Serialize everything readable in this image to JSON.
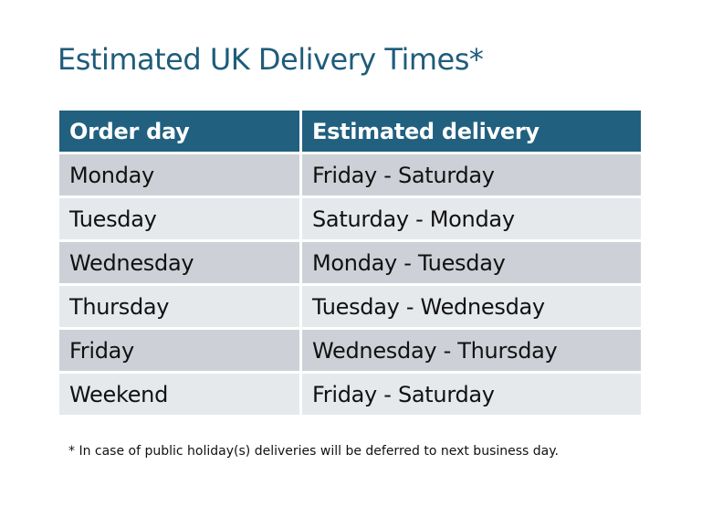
{
  "title": "Estimated UK Delivery Times*",
  "table": {
    "headers": [
      "Order day",
      "Estimated delivery"
    ],
    "rows": [
      [
        "Monday",
        "Friday - Saturday"
      ],
      [
        "Tuesday",
        "Saturday - Monday"
      ],
      [
        "Wednesday",
        "Monday - Tuesday"
      ],
      [
        "Thursday",
        "Tuesday - Wednesday"
      ],
      [
        "Friday",
        "Wednesday - Thursday"
      ],
      [
        "Weekend",
        "Friday - Saturday"
      ]
    ]
  },
  "footnote": "* In case of public holiday(s) deliveries will be deferred to next business day.",
  "colors": {
    "header": "#22607f",
    "title": "#1f5c7b",
    "row_dark": "#cdd1d7",
    "row_light": "#e6e9ec"
  }
}
